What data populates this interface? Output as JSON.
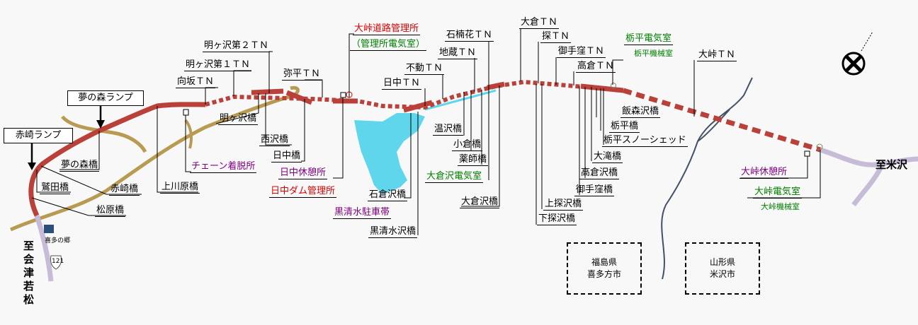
{
  "colors": {
    "road": "#b9413a",
    "planned_road": "#c7bcd8",
    "local_road": "#b89a52",
    "lake": "#5fd6ec",
    "river": "#44506a",
    "black": "#000000",
    "purple": "#800080",
    "red": "#e00000",
    "green": "#008000"
  },
  "ramps": [
    {
      "text": "夢の森ランプ"
    },
    {
      "text": "赤崎ランプ"
    }
  ],
  "destinations": {
    "west": "至会津若松",
    "east": "至米沢"
  },
  "landmark": {
    "text": "喜多の郷",
    "route_number": "121"
  },
  "prefectures": [
    {
      "pref": "福島県",
      "city": "喜多方市"
    },
    {
      "pref": "山形県",
      "city": "米沢市"
    }
  ],
  "labels": [
    {
      "text": "夢の森橋",
      "color": "black"
    },
    {
      "text": "鷲田橋",
      "color": "black"
    },
    {
      "text": "赤崎橋",
      "color": "black"
    },
    {
      "text": "松原橋",
      "color": "black"
    },
    {
      "text": "上川原橋",
      "color": "black"
    },
    {
      "text": "チェーン着脱所",
      "color": "purple"
    },
    {
      "text": "向坂ＴＮ",
      "color": "black"
    },
    {
      "text": "明ヶ沢第１ＴＮ",
      "color": "black"
    },
    {
      "text": "明ヶ沢第２ＴＮ",
      "color": "black"
    },
    {
      "text": "明ヶ沢橋",
      "color": "black"
    },
    {
      "text": "西沢橋",
      "color": "black"
    },
    {
      "text": "日中橋",
      "color": "black"
    },
    {
      "text": "弥平ＴＮ",
      "color": "black"
    },
    {
      "text": "日中休憩所",
      "color": "purple"
    },
    {
      "text": "日中ダム管理所",
      "color": "red"
    },
    {
      "text": "大峠道路管理所",
      "color": "red"
    },
    {
      "text": "（管理所電気室）",
      "color": "green"
    },
    {
      "text": "日中ＴＮ",
      "color": "black"
    },
    {
      "text": "不動ＴＮ",
      "color": "black"
    },
    {
      "text": "地蔵ＴＮ",
      "color": "black"
    },
    {
      "text": "石楠花ＴＮ",
      "color": "black"
    },
    {
      "text": "温沢橋",
      "color": "black"
    },
    {
      "text": "小倉橋",
      "color": "black"
    },
    {
      "text": "薬師橋",
      "color": "black"
    },
    {
      "text": "大倉沢電気室",
      "color": "green"
    },
    {
      "text": "石倉沢橋",
      "color": "black"
    },
    {
      "text": "黒清水駐車帯",
      "color": "purple"
    },
    {
      "text": "黒清水沢橋",
      "color": "black"
    },
    {
      "text": "大倉沢橋",
      "color": "black"
    },
    {
      "text": "大倉ＴＮ",
      "color": "black"
    },
    {
      "text": "探ＴＮ",
      "color": "black"
    },
    {
      "text": "御手窪ＴＮ",
      "color": "black"
    },
    {
      "text": "高倉ＴＮ",
      "color": "black"
    },
    {
      "text": "栃平電気室",
      "color": "green"
    },
    {
      "text": "栃平機械室",
      "color": "green"
    },
    {
      "text": "大峠ＴＮ",
      "color": "black"
    },
    {
      "text": "飯森沢橋",
      "color": "black"
    },
    {
      "text": "栃平橋",
      "color": "black"
    },
    {
      "text": "栃平スノーシェッド",
      "color": "black"
    },
    {
      "text": "大滝橋",
      "color": "black"
    },
    {
      "text": "高倉沢橋",
      "color": "black"
    },
    {
      "text": "御手窪橋",
      "color": "black"
    },
    {
      "text": "上探沢橋",
      "color": "black"
    },
    {
      "text": "下探沢橋",
      "color": "black"
    },
    {
      "text": "大峠休憩所",
      "color": "purple"
    },
    {
      "text": "大峠電気室",
      "color": "green"
    },
    {
      "text": "大峠機械室",
      "color": "green"
    }
  ],
  "north_icon": "compass-north-icon"
}
